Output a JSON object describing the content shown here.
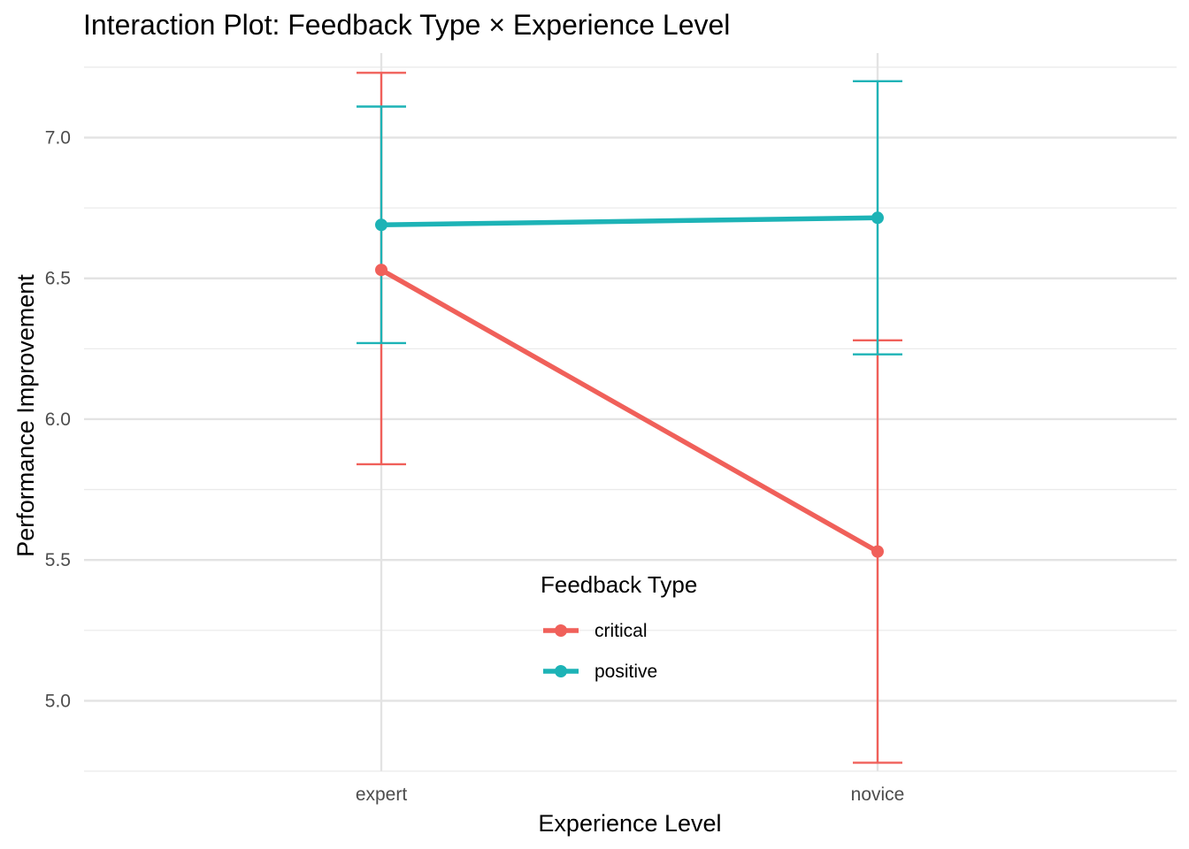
{
  "chart_data": {
    "type": "line",
    "title": "Interaction Plot: Feedback Type × Experience Level",
    "xlabel": "Experience Level",
    "ylabel": "Performance Improvement",
    "categories": [
      "expert",
      "novice"
    ],
    "ylim": [
      4.75,
      7.3
    ],
    "yticks": [
      5.0,
      5.5,
      6.0,
      6.5,
      7.0
    ],
    "ytick_labels": [
      "5.0",
      "5.5",
      "6.0",
      "6.5",
      "7.0"
    ],
    "grid": true,
    "legend": {
      "title": "Feedback Type",
      "placement": "inside-bottom-center"
    },
    "series": [
      {
        "name": "critical",
        "color": "#F0605A",
        "values": [
          6.53,
          5.53
        ],
        "lower": [
          5.84,
          4.78
        ],
        "upper": [
          7.23,
          6.28
        ]
      },
      {
        "name": "positive",
        "color": "#1DB3B6",
        "values": [
          6.69,
          6.715
        ],
        "lower": [
          6.27,
          6.23
        ],
        "upper": [
          7.11,
          7.2
        ]
      }
    ]
  }
}
